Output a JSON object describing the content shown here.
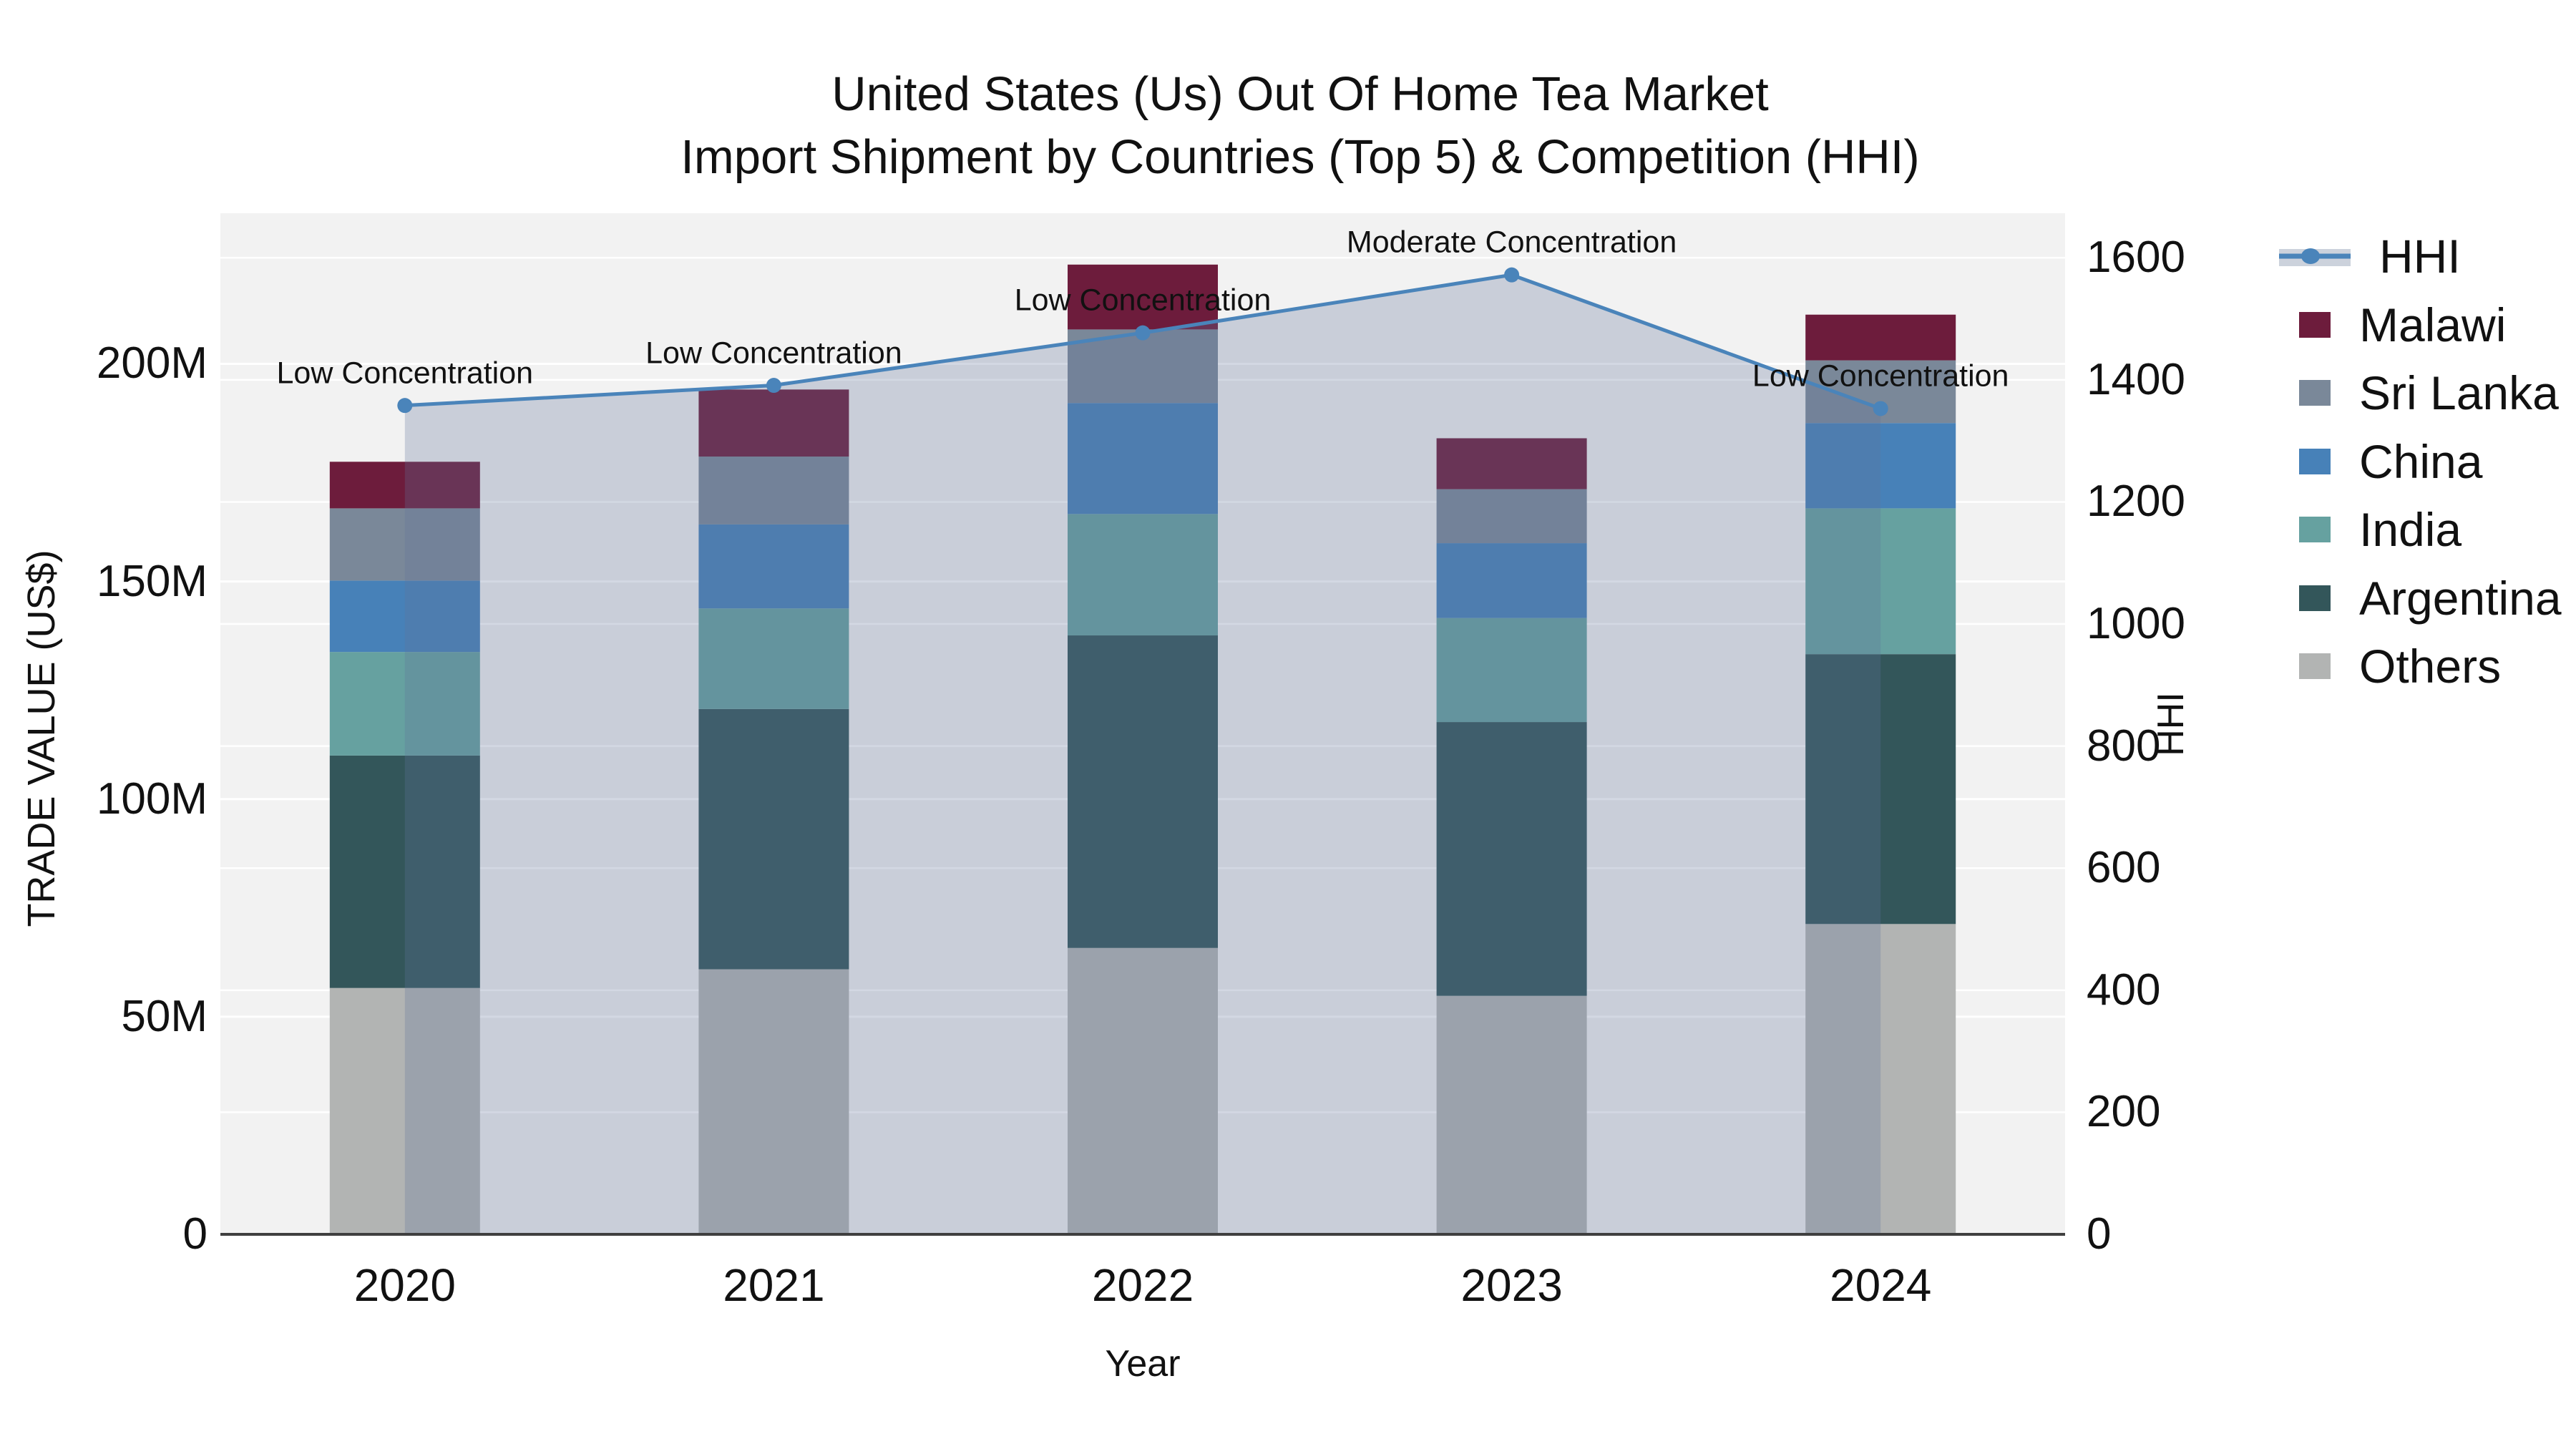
{
  "title": {
    "line1": "United States (Us) Out Of Home Tea Market",
    "line2": "Import Shipment by Countries (Top 5) & Competition (HHI)"
  },
  "chart_data": {
    "type": "combo: stacked-bar (left axis) + line with markers (right axis)",
    "categories": [
      "2020",
      "2021",
      "2022",
      "2023",
      "2024"
    ],
    "xlabel": "Year",
    "ylabel_left": "TRADE VALUE (US$)",
    "ylabel_right": "HHI",
    "unit_left": "Million US$",
    "ylim_left": [
      0,
      234.6
    ],
    "ylim_right": [
      0,
      1673
    ],
    "yticks_left": {
      "labels": [
        "0",
        "50M",
        "100M",
        "150M",
        "200M"
      ],
      "values": [
        0,
        50,
        100,
        150,
        200
      ]
    },
    "yticks_right": {
      "labels": [
        "0",
        "200",
        "400",
        "600",
        "800",
        "1000",
        "1200",
        "1400",
        "1600"
      ],
      "values": [
        0,
        200,
        400,
        600,
        800,
        1000,
        1200,
        1400,
        1600
      ]
    },
    "grid": "on (white gridlines for both axes)",
    "series": [
      {
        "name": "Others",
        "color": "#B2B4B3",
        "values": [
          56.6,
          60.9,
          65.8,
          54.8,
          71.3
        ]
      },
      {
        "name": "Argentina",
        "color": "#33565A",
        "values": [
          53.4,
          59.8,
          71.8,
          62.9,
          62.0
        ]
      },
      {
        "name": "India",
        "color": "#66A1A0",
        "values": [
          23.8,
          23.1,
          27.9,
          23.9,
          33.5
        ]
      },
      {
        "name": "China",
        "color": "#4781B8",
        "values": [
          16.4,
          19.3,
          25.5,
          17.2,
          19.6
        ]
      },
      {
        "name": "Sri Lanka",
        "color": "#7A8899",
        "values": [
          16.6,
          15.6,
          16.9,
          12.4,
          14.4
        ]
      },
      {
        "name": "Malawi",
        "color": "#6D1C3C",
        "values": [
          10.7,
          15.4,
          14.9,
          11.7,
          10.5
        ]
      }
    ],
    "bar_totals": [
      177.5,
      194.1,
      222.8,
      182.9,
      211.3
    ],
    "line_series": {
      "name": "HHI",
      "color": "#4A84BA",
      "values": [
        1358,
        1391,
        1477,
        1572,
        1353
      ],
      "area_fill": "rgba(96,116,154,0.28)",
      "area_span": "from 2020 point to 2024 point down to baseline"
    },
    "annotations": [
      {
        "x": "2020",
        "text": "Low Concentration"
      },
      {
        "x": "2021",
        "text": "Low Concentration"
      },
      {
        "x": "2022",
        "text": "Low Concentration"
      },
      {
        "x": "2023",
        "text": "Moderate Concentration"
      },
      {
        "x": "2024",
        "text": "Low Concentration"
      }
    ],
    "legend_position": "right side, outside plot",
    "plot_background": "#F2F2F2",
    "gridline_color": "#FFFFFF",
    "baseline_color": "#3F3F3F"
  },
  "legend": {
    "items": [
      {
        "label": "HHI",
        "type": "line"
      },
      {
        "label": "Malawi",
        "type": "swatch",
        "color": "#6D1C3C"
      },
      {
        "label": "Sri Lanka",
        "type": "swatch",
        "color": "#7A8899"
      },
      {
        "label": "China",
        "type": "swatch",
        "color": "#4781B8"
      },
      {
        "label": "India",
        "type": "swatch",
        "color": "#66A1A0"
      },
      {
        "label": "Argentina",
        "type": "swatch",
        "color": "#33565A"
      },
      {
        "label": "Others",
        "type": "swatch",
        "color": "#B2B4B3"
      }
    ]
  }
}
